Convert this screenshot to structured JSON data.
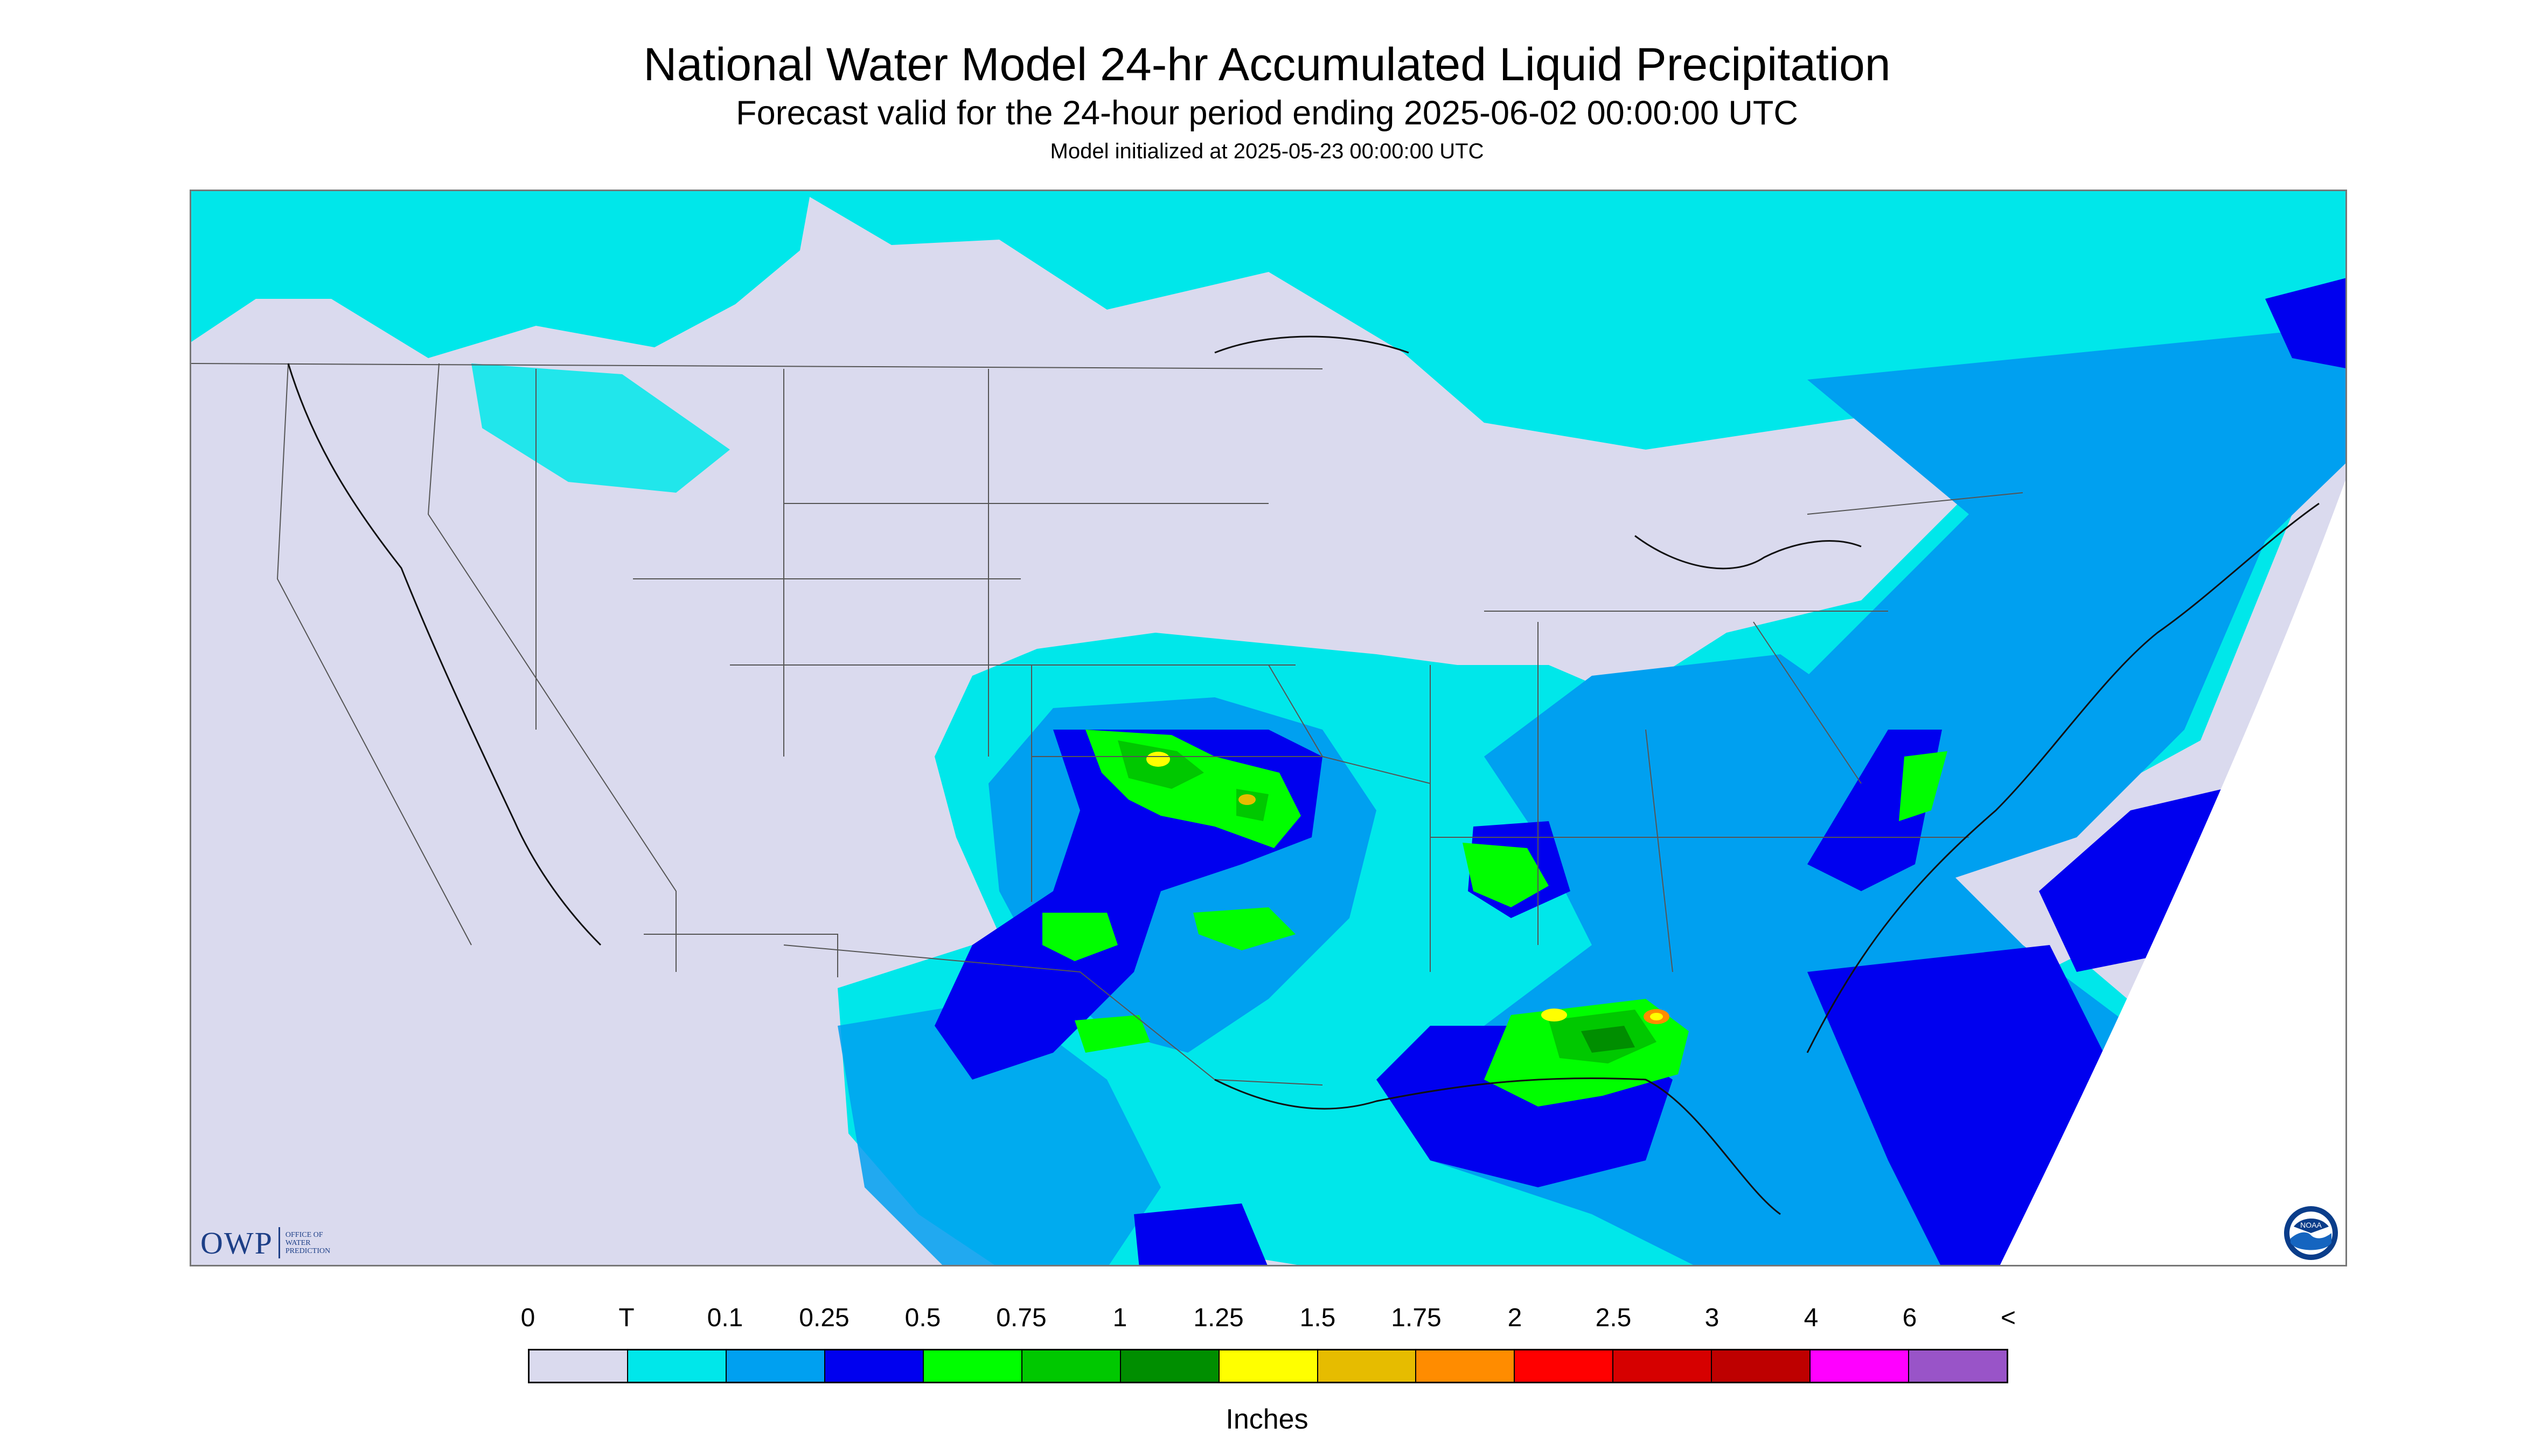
{
  "title": "National Water Model 24-hr Accumulated Liquid Precipitation",
  "subtitle": "Forecast valid for the 24-hour period ending 2025-06-02 00:00:00 UTC",
  "init": "Model initialized at 2025-05-23 00:00:00 UTC",
  "legend": {
    "labels": [
      "0",
      "T",
      "0.1",
      "0.25",
      "0.5",
      "0.75",
      "1",
      "1.25",
      "1.5",
      "1.75",
      "2",
      "2.5",
      "3",
      "4",
      "6",
      "<"
    ],
    "colors": [
      "#dadaee",
      "#00e7ea",
      "#00a0f0",
      "#0000ef",
      "#00fe00",
      "#00c800",
      "#008e00",
      "#ffff00",
      "#e6bc00",
      "#ff8c00",
      "#ff0000",
      "#d60000",
      "#be0000",
      "#ff00ff",
      "#9954c8"
    ],
    "units": "Inches"
  },
  "logos": {
    "owp_text": "OWP",
    "owp_office": [
      "OFFICE OF",
      "WATER",
      "PREDICTION"
    ],
    "noaa_text": "NOAA"
  },
  "map": {
    "projection": "Lambert conformal",
    "region": "Contiguous United States"
  }
}
